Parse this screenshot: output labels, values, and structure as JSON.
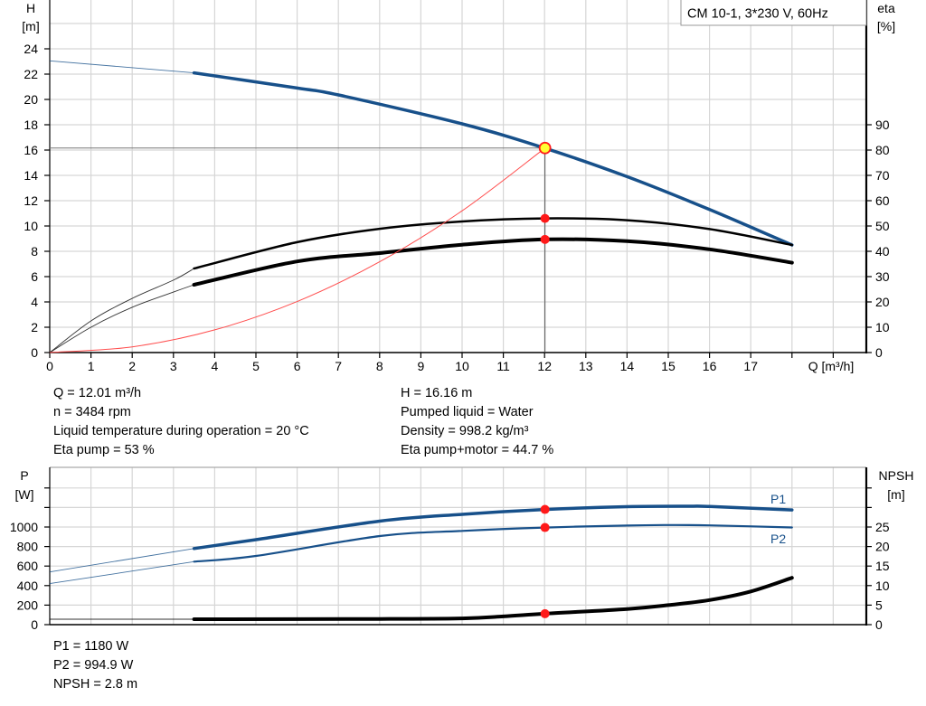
{
  "legend_box": {
    "label": "CM 10-1, 3*230 V, 60Hz"
  },
  "colors": {
    "pump_blue": "#17508a",
    "duty_point": "#ff1a1a",
    "duty_point_fill": "#ffff33",
    "system_curve": "#ff4d4d",
    "grid": "#d9d9d9"
  },
  "chart_data": [
    {
      "type": "line",
      "title": "",
      "xlabel": "Q [m³/h]",
      "x_ticks": [
        0,
        1,
        2,
        3,
        4,
        5,
        6,
        7,
        8,
        9,
        10,
        11,
        12,
        13,
        14,
        15,
        16,
        17
      ],
      "xlim": [
        0,
        19.8
      ],
      "left_axis": {
        "label": "H",
        "unit": "[m]",
        "ticks": [
          0,
          2,
          4,
          6,
          8,
          10,
          12,
          14,
          16,
          18,
          20,
          22,
          24
        ],
        "ylim": [
          0,
          27.8
        ]
      },
      "right_axis": {
        "label": "eta",
        "unit": "[%]",
        "ticks": [
          0,
          10,
          20,
          30,
          40,
          50,
          60,
          70,
          80,
          90
        ],
        "ylim": [
          0,
          139
        ]
      },
      "grid": true,
      "operating_range": [
        3.5,
        18
      ],
      "series": [
        {
          "id": "H",
          "axis": "left",
          "color": "#17508a",
          "x": [
            0,
            3.5,
            6,
            7,
            10,
            12,
            14,
            16,
            18
          ],
          "y": [
            23.05,
            22.1,
            20.9,
            20.36,
            18.07,
            16.16,
            13.9,
            11.3,
            8.5
          ]
        },
        {
          "id": "eta_pump",
          "axis": "right",
          "color": "#000000",
          "x": [
            0,
            1,
            2,
            3,
            3.5,
            6,
            8,
            10,
            12,
            14,
            16,
            18
          ],
          "y": [
            0,
            12.5,
            21.4,
            28.6,
            33.2,
            43.6,
            48.9,
            51.8,
            53,
            52.3,
            48.8,
            42.5
          ]
        },
        {
          "id": "eta_pump_motor",
          "axis": "right",
          "color": "#000000",
          "x": [
            0,
            1,
            2,
            3,
            3.5,
            6,
            8,
            10,
            12,
            14,
            16,
            18
          ],
          "y": [
            0,
            10,
            17.9,
            23.9,
            26.8,
            36,
            39.3,
            42.6,
            44.7,
            44,
            40.8,
            35.5
          ]
        },
        {
          "id": "system_curve",
          "axis": "left",
          "color": "#ff4d4d",
          "x": [
            0,
            2,
            4,
            6,
            8,
            10,
            12.01
          ],
          "y": [
            0,
            0.45,
            1.79,
            4.03,
            7.17,
            11.2,
            16.16
          ]
        }
      ],
      "duty_point": {
        "Q": 12.01,
        "H": 16.16,
        "eta_pump": 53,
        "eta_pump_motor": 44.7
      }
    },
    {
      "type": "line",
      "title": "",
      "x_ticks": [
        0,
        1,
        2,
        3,
        4,
        5,
        6,
        7,
        8,
        9,
        10,
        11,
        12,
        13,
        14,
        15,
        16,
        17,
        18,
        19
      ],
      "xlim": [
        0,
        19.8
      ],
      "left_axis": {
        "label": "P",
        "unit": "[W]",
        "ticks": [
          0,
          200,
          400,
          600,
          800,
          1000
        ],
        "ylim": [
          0,
          1600
        ]
      },
      "right_axis": {
        "label": "NPSH",
        "unit": "[m]",
        "ticks": [
          0,
          5,
          10,
          15,
          20,
          25
        ],
        "ylim": [
          0,
          40
        ]
      },
      "grid": true,
      "operating_range": [
        3.5,
        18
      ],
      "series": [
        {
          "id": "P1",
          "name": "P1",
          "axis": "left",
          "color": "#17508a",
          "x": [
            0,
            3.5,
            5,
            8,
            10,
            12,
            14,
            15.5,
            16,
            18
          ],
          "y": [
            540,
            780,
            870,
            1060,
            1130,
            1180,
            1208,
            1213,
            1210,
            1175
          ]
        },
        {
          "id": "P2",
          "name": "P2",
          "axis": "left",
          "color": "#17508a",
          "x": [
            0,
            3.5,
            5,
            8,
            10,
            12,
            14,
            15,
            16,
            18
          ],
          "y": [
            420,
            645,
            704,
            907,
            960,
            994.9,
            1015,
            1020,
            1017,
            995
          ]
        },
        {
          "id": "NPSH",
          "axis": "right",
          "color": "#000000",
          "x": [
            0,
            3.5,
            8,
            10,
            11,
            12,
            14,
            15,
            16,
            17,
            18
          ],
          "y": [
            1.4,
            1.4,
            1.45,
            1.6,
            2.1,
            2.8,
            4.0,
            5.0,
            6.3,
            8.5,
            12
          ]
        }
      ],
      "duty_point": {
        "P1": 1180,
        "P2": 994.9,
        "NPSH": 2.8
      }
    }
  ],
  "info": {
    "left": [
      "Q = 12.01 m³/h",
      "n = 3484 rpm",
      "Liquid temperature during operation = 20 °C",
      "Eta pump = 53 %"
    ],
    "right": [
      "H = 16.16 m",
      "Pumped liquid = Water",
      "Density = 998.2 kg/m³",
      "Eta pump+motor = 44.7 %"
    ],
    "bottom": [
      "P1 = 1180 W",
      "P2 = 994.9 W",
      "NPSH = 2.8 m"
    ]
  }
}
